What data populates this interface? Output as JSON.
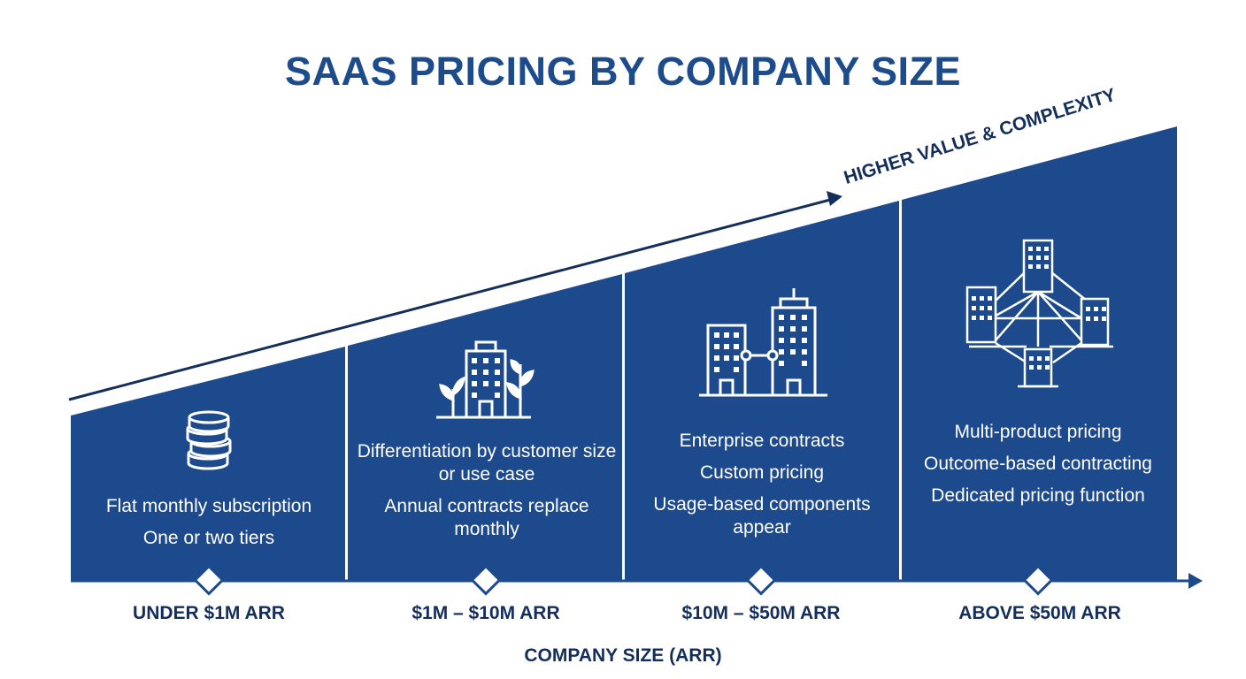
{
  "title": "SAAS PRICING BY COMPANY SIZE",
  "trend_label": "HIGHER VALUE & COMPLEXITY",
  "x_axis_label": "COMPANY SIZE (ARR)",
  "colors": {
    "panel": "#1c4a8d",
    "title": "#1d4c8c",
    "dark": "#142e5c"
  },
  "stages": [
    {
      "tier": "UNDER $1M ARR",
      "icon": "coin-stack-icon",
      "lines": [
        "Flat monthly subscription",
        "One or two tiers"
      ]
    },
    {
      "tier": "$1M – $10M ARR",
      "icon": "building-with-plants-icon",
      "lines": [
        "Differentiation by customer size or use case",
        "Annual contracts replace monthly"
      ]
    },
    {
      "tier": "$10M – $50M ARR",
      "icon": "connected-buildings-icon",
      "lines": [
        "Enterprise contracts",
        "Custom pricing",
        "Usage-based components appear"
      ]
    },
    {
      "tier": "ABOVE $50M ARR",
      "icon": "building-network-icon",
      "lines": [
        "Multi-product pricing",
        "Outcome-based contracting",
        "Dedicated pricing function"
      ]
    }
  ]
}
